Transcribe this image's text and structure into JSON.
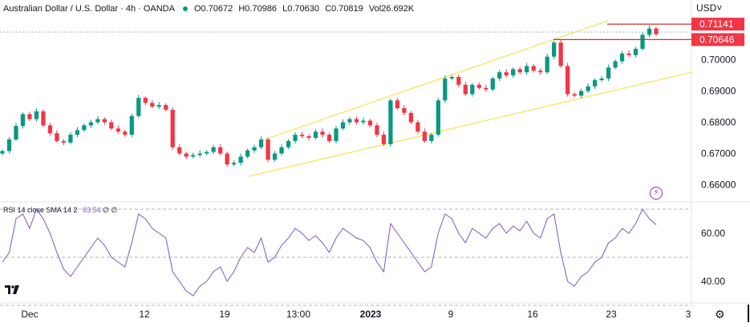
{
  "header": {
    "symbol": "Australian Dollar / U.S. Dollar · 4h · OANDA",
    "open": "O0.70672",
    "high": "H0.70986",
    "low": "L0.70630",
    "close": "C0.70819",
    "volume": "Vol26.692K"
  },
  "currency_label": "USD",
  "rsi_label": "RSI 14 close SMA 14 2",
  "rsi_value": "63.54",
  "rsi_extra": "∅ ∅",
  "colors": {
    "up": "#089981",
    "down": "#f23645",
    "channel": "#f5e663",
    "level": "#d32f2f",
    "rsi": "#7e57c2",
    "grid": "#e0e3eb"
  },
  "chart_data": [
    {
      "type": "candlestick",
      "title": "",
      "xlabel": "",
      "ylabel": "",
      "ylim": [
        0.655,
        0.714
      ],
      "y_ticks": [
        "0.70000",
        "0.69000",
        "0.68000",
        "0.67000",
        "0.66000"
      ],
      "x_ticks": [
        "Dec",
        "12",
        "19",
        "13:00",
        "2023",
        "9",
        "16",
        "23",
        "3"
      ],
      "price_labels": [
        "0.71141",
        "0.70646"
      ],
      "channel": "ascending",
      "close_path": [
        0.6708,
        0.6745,
        0.6788,
        0.6826,
        0.681,
        0.6835,
        0.679,
        0.6765,
        0.674,
        0.6735,
        0.676,
        0.6775,
        0.679,
        0.68,
        0.681,
        0.68,
        0.678,
        0.677,
        0.676,
        0.682,
        0.6878,
        0.6862,
        0.685,
        0.6855,
        0.684,
        0.672,
        0.67,
        0.669,
        0.6695,
        0.67,
        0.6705,
        0.672,
        0.67,
        0.6665,
        0.667,
        0.669,
        0.671,
        0.672,
        0.6745,
        0.668,
        0.67,
        0.672,
        0.674,
        0.676,
        0.6755,
        0.675,
        0.677,
        0.676,
        0.674,
        0.678,
        0.68,
        0.681,
        0.68,
        0.6805,
        0.679,
        0.676,
        0.673,
        0.687,
        0.6845,
        0.683,
        0.68,
        0.677,
        0.674,
        0.676,
        0.687,
        0.694,
        0.6945,
        0.692,
        0.689,
        0.692,
        0.691,
        0.6905,
        0.694,
        0.696,
        0.695,
        0.697,
        0.696,
        0.698,
        0.6965,
        0.696,
        0.701,
        0.7055,
        0.698,
        0.689,
        0.6885,
        0.69,
        0.6915,
        0.6935,
        0.694,
        0.6975,
        0.6995,
        0.702,
        0.7015,
        0.7035,
        0.708,
        0.71,
        0.7082
      ]
    },
    {
      "type": "line",
      "title": "RSI 14 close SMA 14 2",
      "ylim": [
        32,
        72
      ],
      "y_ticks": [
        "60.00",
        "40.00"
      ],
      "levels": [
        70,
        50,
        30
      ],
      "values": [
        48,
        52,
        66,
        68,
        62,
        70,
        66,
        60,
        52,
        45,
        42,
        46,
        50,
        54,
        58,
        55,
        50,
        48,
        46,
        56,
        68,
        66,
        62,
        60,
        58,
        44,
        40,
        36,
        34,
        38,
        40,
        44,
        46,
        40,
        44,
        50,
        54,
        52,
        58,
        48,
        50,
        55,
        58,
        62,
        60,
        57,
        59,
        56,
        52,
        58,
        62,
        60,
        58,
        57,
        54,
        48,
        44,
        64,
        60,
        56,
        52,
        48,
        44,
        46,
        60,
        68,
        66,
        60,
        56,
        62,
        60,
        58,
        62,
        64,
        60,
        63,
        61,
        65,
        60,
        58,
        66,
        68,
        52,
        40,
        38,
        42,
        44,
        48,
        50,
        56,
        58,
        62,
        60,
        64,
        70,
        66,
        63.54
      ]
    }
  ]
}
